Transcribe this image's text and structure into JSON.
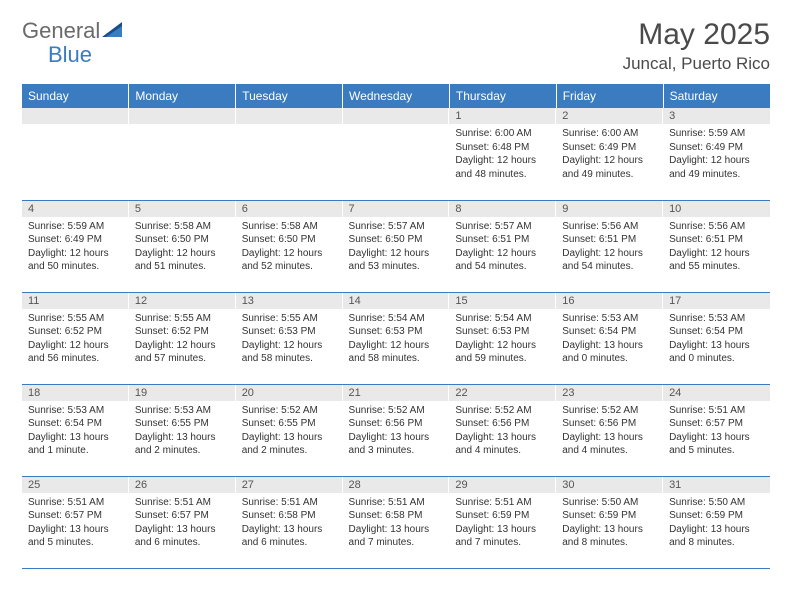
{
  "brand": {
    "name1": "General",
    "name2": "Blue"
  },
  "title": "May 2025",
  "location": "Juncal, Puerto Rico",
  "colors": {
    "header_bg": "#3b7bbf",
    "header_text": "#ffffff",
    "daynum_bg": "#e9e9e9",
    "border": "#3b7bbf",
    "body_text": "#333333",
    "title_text": "#4a4a4a",
    "logo_gray": "#6a6a6a",
    "logo_blue": "#3b7bbf"
  },
  "weekdays": [
    "Sunday",
    "Monday",
    "Tuesday",
    "Wednesday",
    "Thursday",
    "Friday",
    "Saturday"
  ],
  "weeks": [
    [
      {
        "n": "",
        "sr": "",
        "ss": "",
        "dl": ""
      },
      {
        "n": "",
        "sr": "",
        "ss": "",
        "dl": ""
      },
      {
        "n": "",
        "sr": "",
        "ss": "",
        "dl": ""
      },
      {
        "n": "",
        "sr": "",
        "ss": "",
        "dl": ""
      },
      {
        "n": "1",
        "sr": "Sunrise: 6:00 AM",
        "ss": "Sunset: 6:48 PM",
        "dl": "Daylight: 12 hours and 48 minutes."
      },
      {
        "n": "2",
        "sr": "Sunrise: 6:00 AM",
        "ss": "Sunset: 6:49 PM",
        "dl": "Daylight: 12 hours and 49 minutes."
      },
      {
        "n": "3",
        "sr": "Sunrise: 5:59 AM",
        "ss": "Sunset: 6:49 PM",
        "dl": "Daylight: 12 hours and 49 minutes."
      }
    ],
    [
      {
        "n": "4",
        "sr": "Sunrise: 5:59 AM",
        "ss": "Sunset: 6:49 PM",
        "dl": "Daylight: 12 hours and 50 minutes."
      },
      {
        "n": "5",
        "sr": "Sunrise: 5:58 AM",
        "ss": "Sunset: 6:50 PM",
        "dl": "Daylight: 12 hours and 51 minutes."
      },
      {
        "n": "6",
        "sr": "Sunrise: 5:58 AM",
        "ss": "Sunset: 6:50 PM",
        "dl": "Daylight: 12 hours and 52 minutes."
      },
      {
        "n": "7",
        "sr": "Sunrise: 5:57 AM",
        "ss": "Sunset: 6:50 PM",
        "dl": "Daylight: 12 hours and 53 minutes."
      },
      {
        "n": "8",
        "sr": "Sunrise: 5:57 AM",
        "ss": "Sunset: 6:51 PM",
        "dl": "Daylight: 12 hours and 54 minutes."
      },
      {
        "n": "9",
        "sr": "Sunrise: 5:56 AM",
        "ss": "Sunset: 6:51 PM",
        "dl": "Daylight: 12 hours and 54 minutes."
      },
      {
        "n": "10",
        "sr": "Sunrise: 5:56 AM",
        "ss": "Sunset: 6:51 PM",
        "dl": "Daylight: 12 hours and 55 minutes."
      }
    ],
    [
      {
        "n": "11",
        "sr": "Sunrise: 5:55 AM",
        "ss": "Sunset: 6:52 PM",
        "dl": "Daylight: 12 hours and 56 minutes."
      },
      {
        "n": "12",
        "sr": "Sunrise: 5:55 AM",
        "ss": "Sunset: 6:52 PM",
        "dl": "Daylight: 12 hours and 57 minutes."
      },
      {
        "n": "13",
        "sr": "Sunrise: 5:55 AM",
        "ss": "Sunset: 6:53 PM",
        "dl": "Daylight: 12 hours and 58 minutes."
      },
      {
        "n": "14",
        "sr": "Sunrise: 5:54 AM",
        "ss": "Sunset: 6:53 PM",
        "dl": "Daylight: 12 hours and 58 minutes."
      },
      {
        "n": "15",
        "sr": "Sunrise: 5:54 AM",
        "ss": "Sunset: 6:53 PM",
        "dl": "Daylight: 12 hours and 59 minutes."
      },
      {
        "n": "16",
        "sr": "Sunrise: 5:53 AM",
        "ss": "Sunset: 6:54 PM",
        "dl": "Daylight: 13 hours and 0 minutes."
      },
      {
        "n": "17",
        "sr": "Sunrise: 5:53 AM",
        "ss": "Sunset: 6:54 PM",
        "dl": "Daylight: 13 hours and 0 minutes."
      }
    ],
    [
      {
        "n": "18",
        "sr": "Sunrise: 5:53 AM",
        "ss": "Sunset: 6:54 PM",
        "dl": "Daylight: 13 hours and 1 minute."
      },
      {
        "n": "19",
        "sr": "Sunrise: 5:53 AM",
        "ss": "Sunset: 6:55 PM",
        "dl": "Daylight: 13 hours and 2 minutes."
      },
      {
        "n": "20",
        "sr": "Sunrise: 5:52 AM",
        "ss": "Sunset: 6:55 PM",
        "dl": "Daylight: 13 hours and 2 minutes."
      },
      {
        "n": "21",
        "sr": "Sunrise: 5:52 AM",
        "ss": "Sunset: 6:56 PM",
        "dl": "Daylight: 13 hours and 3 minutes."
      },
      {
        "n": "22",
        "sr": "Sunrise: 5:52 AM",
        "ss": "Sunset: 6:56 PM",
        "dl": "Daylight: 13 hours and 4 minutes."
      },
      {
        "n": "23",
        "sr": "Sunrise: 5:52 AM",
        "ss": "Sunset: 6:56 PM",
        "dl": "Daylight: 13 hours and 4 minutes."
      },
      {
        "n": "24",
        "sr": "Sunrise: 5:51 AM",
        "ss": "Sunset: 6:57 PM",
        "dl": "Daylight: 13 hours and 5 minutes."
      }
    ],
    [
      {
        "n": "25",
        "sr": "Sunrise: 5:51 AM",
        "ss": "Sunset: 6:57 PM",
        "dl": "Daylight: 13 hours and 5 minutes."
      },
      {
        "n": "26",
        "sr": "Sunrise: 5:51 AM",
        "ss": "Sunset: 6:57 PM",
        "dl": "Daylight: 13 hours and 6 minutes."
      },
      {
        "n": "27",
        "sr": "Sunrise: 5:51 AM",
        "ss": "Sunset: 6:58 PM",
        "dl": "Daylight: 13 hours and 6 minutes."
      },
      {
        "n": "28",
        "sr": "Sunrise: 5:51 AM",
        "ss": "Sunset: 6:58 PM",
        "dl": "Daylight: 13 hours and 7 minutes."
      },
      {
        "n": "29",
        "sr": "Sunrise: 5:51 AM",
        "ss": "Sunset: 6:59 PM",
        "dl": "Daylight: 13 hours and 7 minutes."
      },
      {
        "n": "30",
        "sr": "Sunrise: 5:50 AM",
        "ss": "Sunset: 6:59 PM",
        "dl": "Daylight: 13 hours and 8 minutes."
      },
      {
        "n": "31",
        "sr": "Sunrise: 5:50 AM",
        "ss": "Sunset: 6:59 PM",
        "dl": "Daylight: 13 hours and 8 minutes."
      }
    ]
  ]
}
